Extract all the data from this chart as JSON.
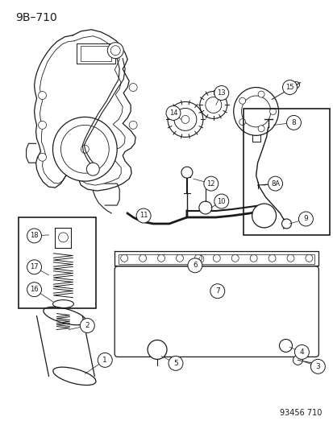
{
  "title": "9B–710",
  "part_number": "93456 710",
  "bg_color": "#ffffff",
  "line_color": "#1a1a1a",
  "fig_width": 4.14,
  "fig_height": 5.33,
  "dpi": 100,
  "title_fontsize": 10,
  "part_number_fontsize": 7
}
